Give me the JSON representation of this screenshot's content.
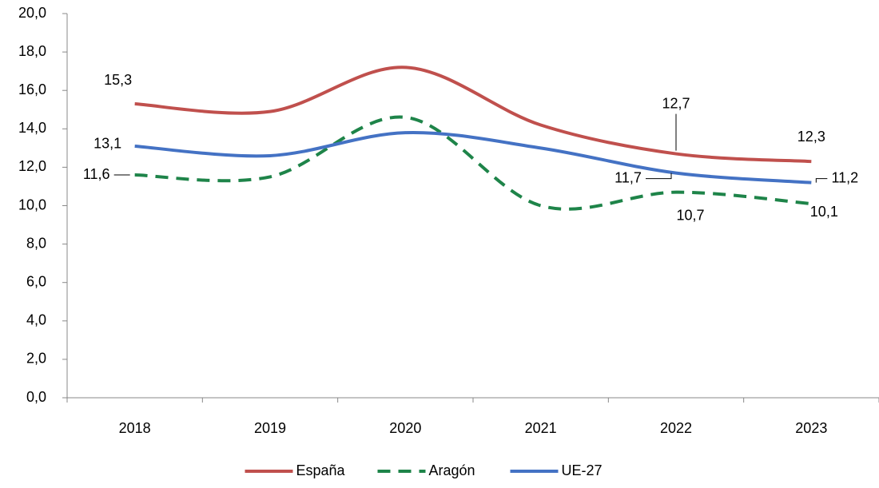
{
  "chart_data": {
    "type": "line",
    "categories": [
      "2018",
      "2019",
      "2020",
      "2021",
      "2022",
      "2023"
    ],
    "series": [
      {
        "name": "España",
        "color": "#c0504d",
        "dash": false,
        "values": [
          15.3,
          14.9,
          17.2,
          14.2,
          12.7,
          12.3
        ],
        "value_labels": [
          "15,3",
          null,
          null,
          null,
          "12,7",
          "12,3"
        ]
      },
      {
        "name": "Aragón",
        "color": "#1e8449",
        "dash": true,
        "values": [
          11.6,
          11.5,
          14.6,
          10.0,
          10.7,
          10.1
        ],
        "value_labels": [
          "11,6",
          null,
          null,
          null,
          "10,7",
          "10,1"
        ]
      },
      {
        "name": "UE-27",
        "color": "#4472c4",
        "dash": false,
        "values": [
          13.1,
          12.6,
          13.8,
          13.0,
          11.7,
          11.2
        ],
        "value_labels": [
          "13,1",
          null,
          null,
          null,
          "11,7",
          "11,2"
        ]
      }
    ],
    "ylim": [
      0,
      20
    ],
    "yticks": [
      {
        "value": 0,
        "label": "0,0"
      },
      {
        "value": 2,
        "label": "2,0"
      },
      {
        "value": 4,
        "label": "4,0"
      },
      {
        "value": 6,
        "label": "6,0"
      },
      {
        "value": 8,
        "label": "8,0"
      },
      {
        "value": 10,
        "label": "10,0"
      },
      {
        "value": 12,
        "label": "12,0"
      },
      {
        "value": 14,
        "label": "14,0"
      },
      {
        "value": 16,
        "label": "16,0"
      },
      {
        "value": 18,
        "label": "18,0"
      },
      {
        "value": 20,
        "label": "20,0"
      }
    ],
    "legend": "bottom"
  }
}
